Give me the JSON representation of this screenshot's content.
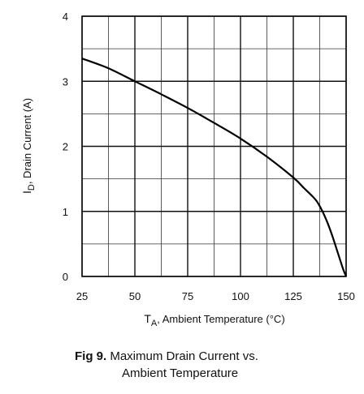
{
  "chart_data": {
    "type": "line",
    "x_tick_labels": [
      "25",
      "50",
      "75",
      "100",
      "125",
      "150"
    ],
    "y_tick_labels": [
      "0",
      "1",
      "2",
      "3",
      "4"
    ],
    "x_ticks": [
      25,
      50,
      75,
      100,
      125,
      150
    ],
    "y_ticks": [
      0,
      1,
      2,
      3,
      4
    ],
    "xlim": [
      25,
      150
    ],
    "ylim": [
      0,
      4
    ],
    "grid": true,
    "x_minor_grid": [
      37.5,
      62.5,
      87.5,
      112.5,
      137.5
    ],
    "y_minor_grid": [
      0.5,
      1.5,
      2.5,
      3.5
    ],
    "xlabel_main": "T",
    "xlabel_sub": "A",
    "xlabel_rest": ", Ambient Temperature (°C)",
    "ylabel_main": "I",
    "ylabel_sub": "D",
    "ylabel_rest": ", Drain Current (A)",
    "series": [
      {
        "x": [
          25,
          37.5,
          50,
          62.5,
          75,
          87.5,
          100,
          112.5,
          125,
          130,
          133.5,
          136,
          138.5,
          141,
          143.5,
          146,
          148.5,
          150
        ],
        "y": [
          3.35,
          3.2,
          3.0,
          2.8,
          2.59,
          2.36,
          2.12,
          1.84,
          1.52,
          1.36,
          1.25,
          1.16,
          1.02,
          0.84,
          0.62,
          0.37,
          0.12,
          0.0
        ]
      }
    ]
  },
  "caption": {
    "fig_label": "Fig 9.",
    "line1": "Maximum Drain Current vs.",
    "line2": "Ambient Temperature"
  }
}
